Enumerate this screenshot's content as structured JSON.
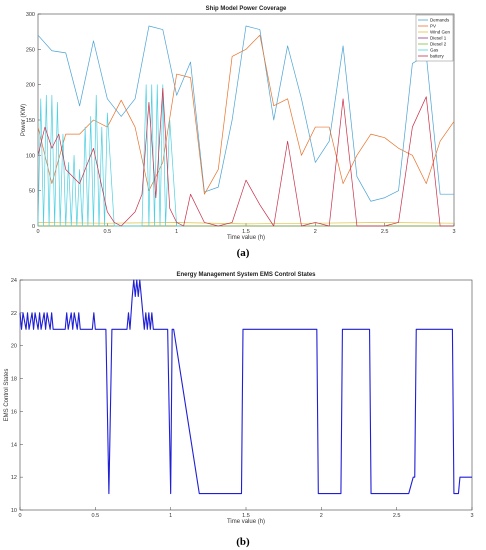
{
  "chart_data": [
    {
      "type": "line",
      "title": "Ship Model Power Coverage",
      "xlabel": "Time value (h)",
      "ylabel": "Power (KW)",
      "xlim": [
        0,
        3
      ],
      "ylim": [
        0,
        300
      ],
      "xticks": [
        "0",
        "0.5",
        "1",
        "1.5",
        "2",
        "2.5",
        "3"
      ],
      "yticks": [
        "0",
        "50",
        "100",
        "150",
        "200",
        "250",
        "300"
      ],
      "legend_position": "top-right",
      "caption": "(a)",
      "series": [
        {
          "name": "Demands",
          "color": "#4aa3d6",
          "x": [
            0,
            0.1,
            0.2,
            0.3,
            0.4,
            0.5,
            0.6,
            0.7,
            0.8,
            0.9,
            1.0,
            1.1,
            1.2,
            1.3,
            1.4,
            1.5,
            1.6,
            1.7,
            1.8,
            1.9,
            2.0,
            2.1,
            2.2,
            2.3,
            2.4,
            2.5,
            2.6,
            2.7,
            2.8,
            2.9,
            3.0
          ],
          "y": [
            270,
            248,
            245,
            170,
            262,
            180,
            155,
            180,
            283,
            278,
            185,
            232,
            48,
            55,
            150,
            283,
            278,
            150,
            255,
            180,
            90,
            120,
            255,
            70,
            35,
            40,
            50,
            230,
            242,
            45,
            45
          ]
        },
        {
          "name": "PV",
          "color": "#e8732c",
          "x": [
            0,
            0.1,
            0.2,
            0.3,
            0.4,
            0.5,
            0.6,
            0.7,
            0.8,
            0.9,
            1.0,
            1.1,
            1.2,
            1.3,
            1.4,
            1.5,
            1.6,
            1.7,
            1.8,
            1.9,
            2.0,
            2.1,
            2.2,
            2.3,
            2.4,
            2.5,
            2.6,
            2.7,
            2.8,
            2.9,
            3.0
          ],
          "y": [
            140,
            60,
            130,
            130,
            150,
            140,
            178,
            140,
            50,
            90,
            215,
            210,
            45,
            80,
            240,
            250,
            270,
            170,
            180,
            100,
            140,
            140,
            60,
            100,
            130,
            125,
            110,
            100,
            60,
            120,
            148
          ]
        },
        {
          "name": "Wind Gen",
          "color": "#e0c040",
          "x": [
            0,
            0.5,
            1.0,
            1.5,
            2.0,
            2.5,
            3.0
          ],
          "y": [
            5,
            4,
            5,
            3,
            4,
            5,
            4
          ]
        },
        {
          "name": "Diesel 1",
          "color": "#8e3b8e",
          "x": [
            0,
            0.5,
            1.0,
            1.5,
            2.0,
            2.5,
            3.0
          ],
          "y": [
            0,
            0,
            0,
            0,
            0,
            0,
            0
          ]
        },
        {
          "name": "Diesel 2",
          "color": "#7fbf3f",
          "x": [
            0,
            0.5,
            1.0,
            1.5,
            2.0,
            2.5,
            3.0
          ],
          "y": [
            0,
            0,
            0,
            0,
            0,
            0,
            0
          ]
        },
        {
          "name": "Gas",
          "color": "#4dd0e1",
          "x": [
            0,
            0.02,
            0.04,
            0.06,
            0.08,
            0.1,
            0.12,
            0.14,
            0.16,
            0.18,
            0.2,
            0.22,
            0.24,
            0.26,
            0.28,
            0.3,
            0.32,
            0.34,
            0.36,
            0.38,
            0.4,
            0.42,
            0.44,
            0.46,
            0.48,
            0.5,
            0.55,
            0.6,
            0.7,
            0.75,
            0.78,
            0.8,
            0.82,
            0.84,
            0.86,
            0.88,
            0.9,
            0.92,
            0.95,
            1.0,
            1.05
          ],
          "y": [
            0,
            180,
            0,
            185,
            0,
            185,
            0,
            175,
            0,
            130,
            0,
            90,
            0,
            100,
            0,
            80,
            0,
            140,
            0,
            155,
            0,
            185,
            0,
            140,
            0,
            160,
            0,
            0,
            0,
            0,
            200,
            0,
            200,
            0,
            200,
            0,
            200,
            0,
            150,
            0,
            0
          ]
        },
        {
          "name": "battery",
          "color": "#c8304a",
          "x": [
            0,
            0.05,
            0.1,
            0.15,
            0.2,
            0.3,
            0.4,
            0.5,
            0.55,
            0.6,
            0.7,
            0.75,
            0.8,
            0.85,
            0.9,
            0.95,
            1.0,
            1.05,
            1.1,
            1.2,
            1.3,
            1.4,
            1.5,
            1.6,
            1.7,
            1.8,
            1.9,
            2.0,
            2.1,
            2.2,
            2.3,
            2.4,
            2.5,
            2.6,
            2.7,
            2.8,
            2.9,
            3.0
          ],
          "y": [
            100,
            140,
            110,
            130,
            80,
            60,
            110,
            20,
            5,
            0,
            20,
            45,
            175,
            40,
            195,
            25,
            5,
            0,
            45,
            5,
            0,
            5,
            65,
            30,
            0,
            120,
            0,
            5,
            0,
            180,
            0,
            0,
            0,
            5,
            140,
            183,
            0,
            0
          ]
        }
      ]
    },
    {
      "type": "line",
      "title": "Energy Management System EMS Control States",
      "xlabel": "Time value (h)",
      "ylabel": "EMS Control States",
      "xlim": [
        0,
        3
      ],
      "ylim": [
        10,
        24
      ],
      "xticks": [
        "0",
        "0.5",
        "1",
        "1.5",
        "2",
        "2.5",
        "3"
      ],
      "yticks": [
        "10",
        "12",
        "14",
        "16",
        "18",
        "20",
        "22",
        "24"
      ],
      "caption": "(b)",
      "series": [
        {
          "color": "#1f1fd6",
          "x": [
            0,
            0.01,
            0.02,
            0.04,
            0.05,
            0.06,
            0.08,
            0.09,
            0.1,
            0.12,
            0.13,
            0.14,
            0.16,
            0.17,
            0.18,
            0.2,
            0.21,
            0.22,
            0.3,
            0.31,
            0.32,
            0.34,
            0.35,
            0.36,
            0.38,
            0.39,
            0.4,
            0.48,
            0.49,
            0.5,
            0.52,
            0.53,
            0.57,
            0.58,
            0.59,
            0.61,
            0.62,
            0.71,
            0.72,
            0.73,
            0.745,
            0.755,
            0.765,
            0.775,
            0.785,
            0.795,
            0.805,
            0.815,
            0.825,
            0.835,
            0.845,
            0.855,
            0.865,
            0.875,
            0.885,
            0.895,
            0.905,
            0.915,
            0.925,
            0.935,
            0.95,
            0.96,
            0.98,
            0.99,
            1.0,
            1.01,
            1.02,
            1.19,
            1.2,
            1.47,
            1.48,
            1.97,
            1.98,
            2.13,
            2.14,
            2.32,
            2.33,
            2.57,
            2.58,
            2.61,
            2.62,
            2.63,
            2.64,
            2.87,
            2.88,
            2.91,
            2.92,
            3.0
          ],
          "y": [
            22,
            21,
            22,
            21,
            22,
            21,
            22,
            21,
            22,
            21,
            22,
            21,
            22,
            21,
            22,
            21,
            22,
            21,
            21,
            22,
            21,
            22,
            21,
            22,
            21,
            22,
            21,
            21,
            22,
            21,
            21,
            21,
            21,
            16,
            11,
            21,
            21,
            21,
            22,
            21,
            23,
            24,
            23,
            24,
            23,
            24,
            23,
            22,
            21,
            22,
            21,
            22,
            21,
            22,
            21,
            21,
            21,
            21,
            21,
            21,
            21,
            21,
            21,
            16,
            11,
            21,
            21,
            11,
            11,
            11,
            21,
            21,
            11,
            11,
            21,
            21,
            11,
            11,
            11,
            12,
            12,
            21,
            21,
            21,
            11,
            11,
            12,
            12
          ]
        }
      ]
    }
  ]
}
